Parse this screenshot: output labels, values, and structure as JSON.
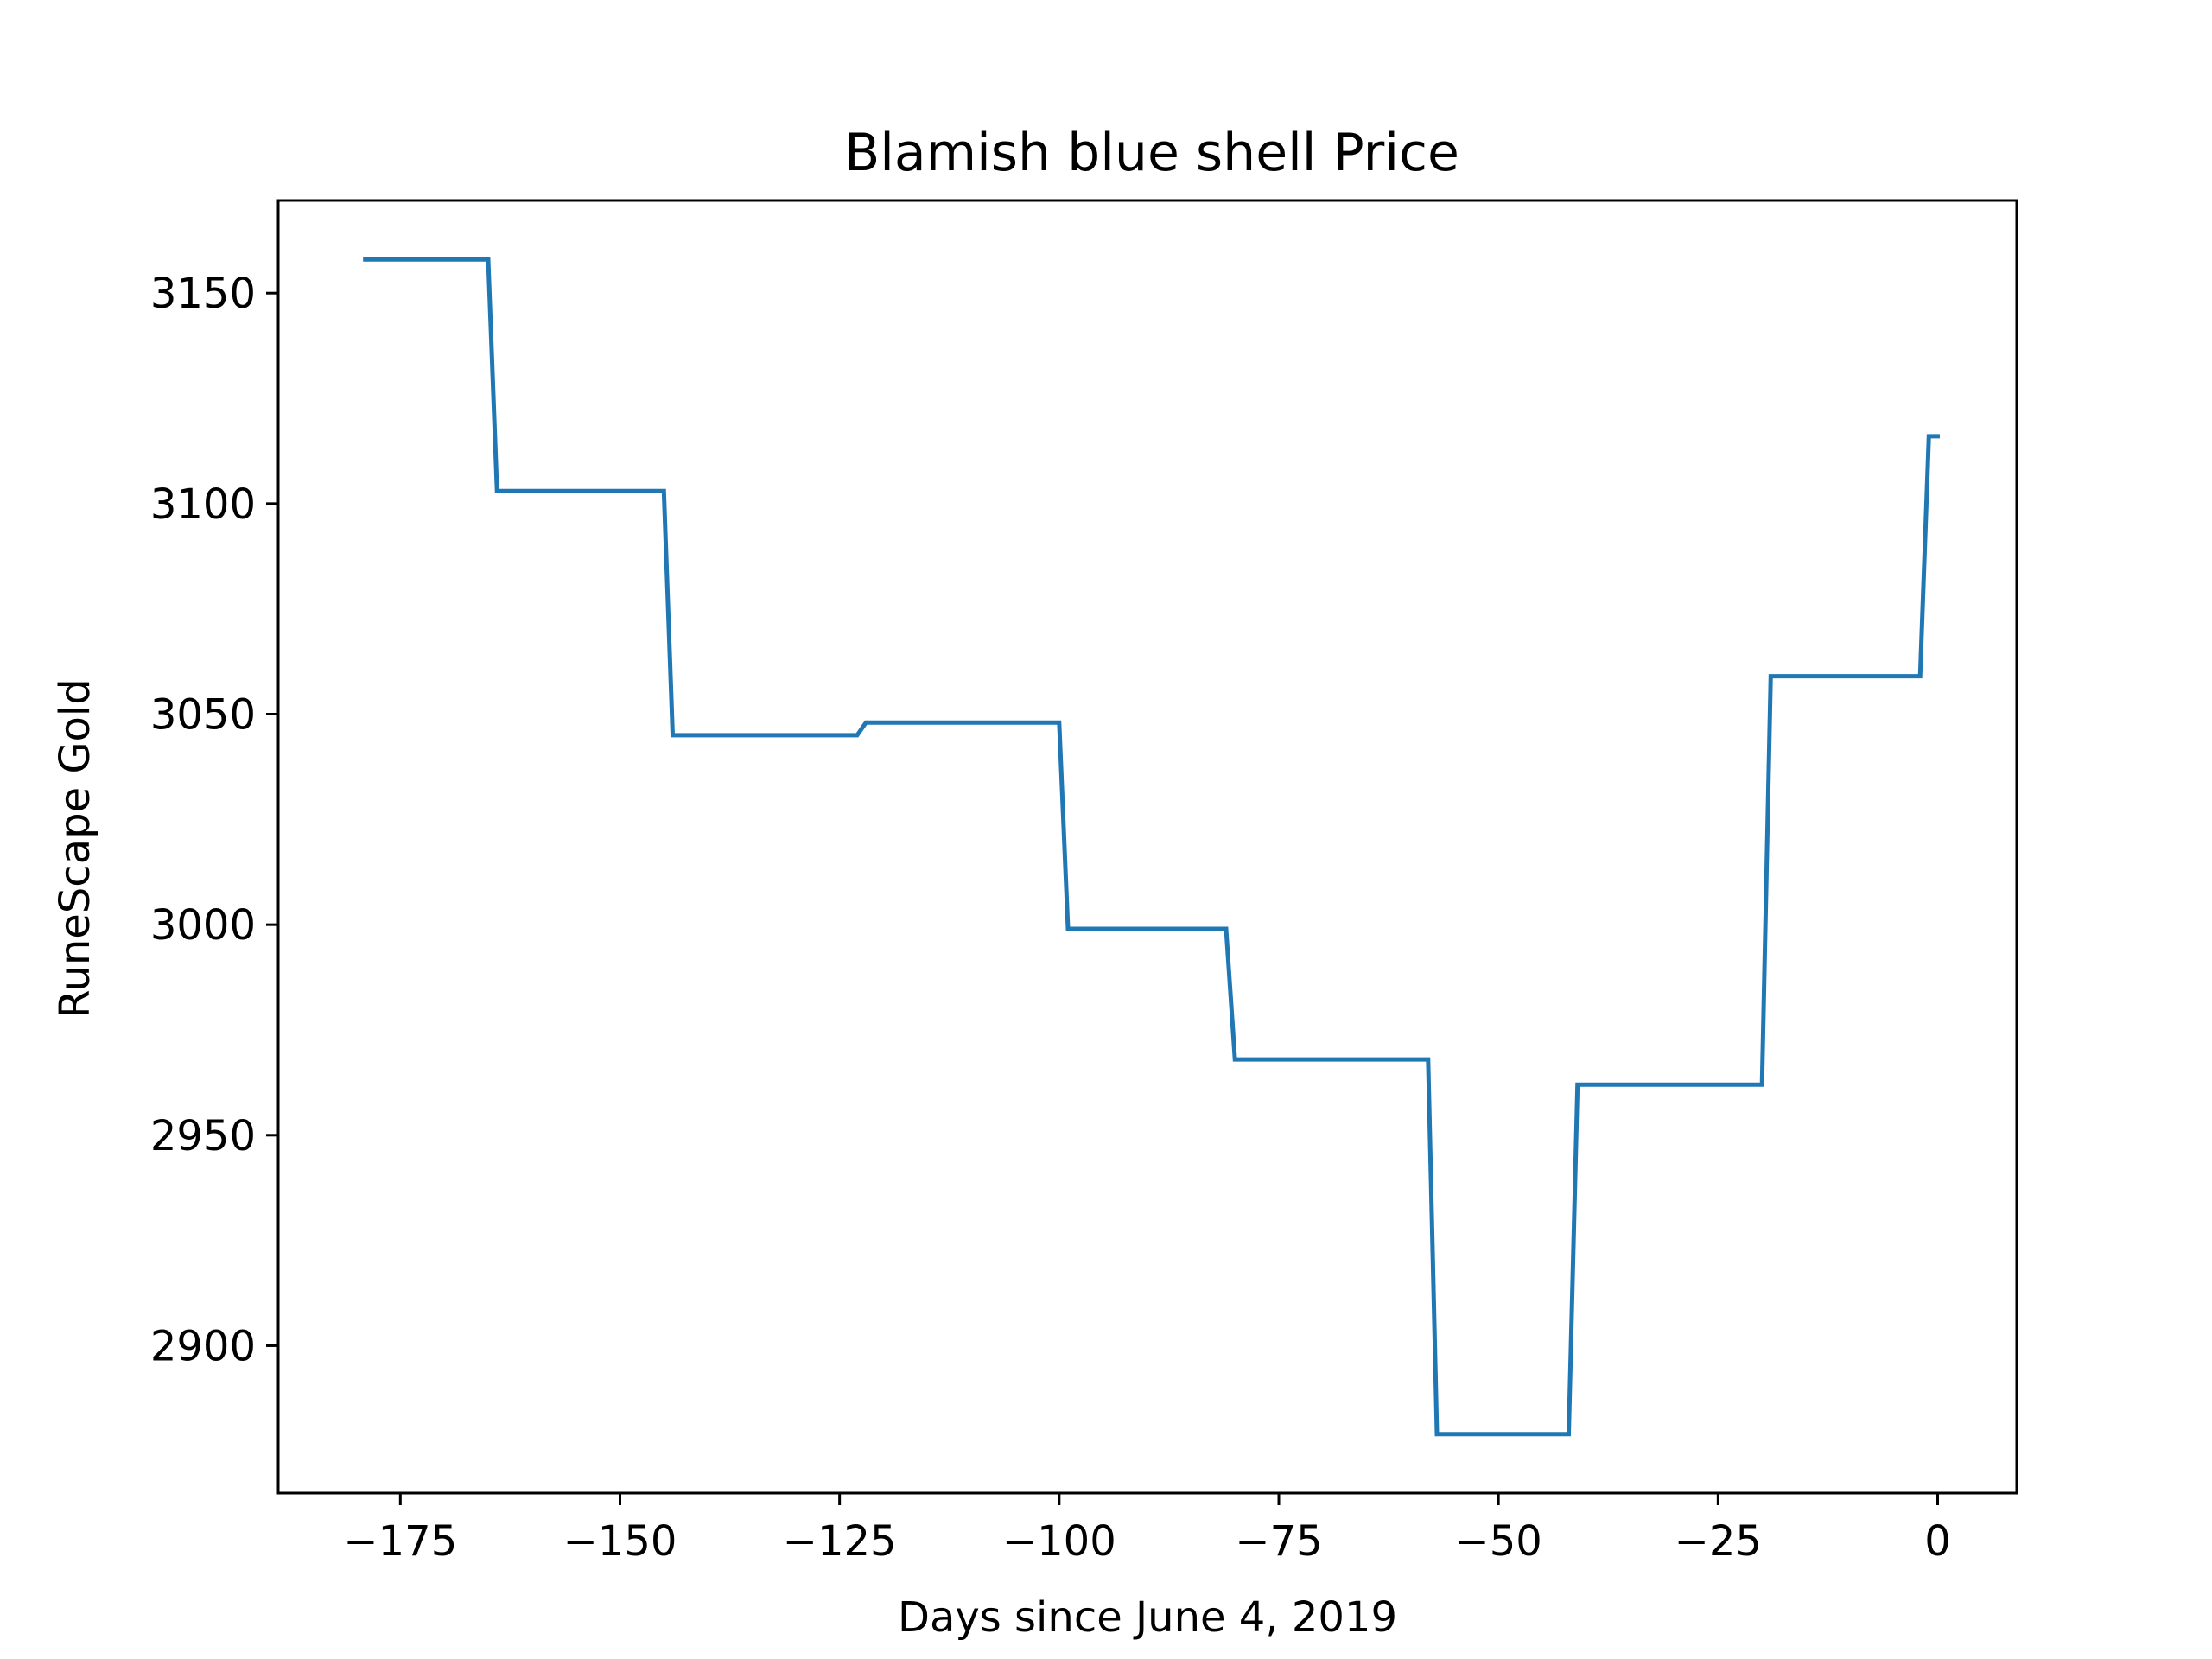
{
  "chart_data": {
    "type": "line",
    "title": "Blamish blue shell Price",
    "xlabel": "Days since June 4, 2019",
    "ylabel": "RuneScape Gold",
    "xlim": [
      -188.9,
      9
    ],
    "ylim": [
      2865,
      3172
    ],
    "xticks": [
      -175,
      -150,
      -125,
      -100,
      -75,
      -50,
      -25,
      0
    ],
    "xtick_labels": [
      "−175",
      "−150",
      "−125",
      "−100",
      "−75",
      "−50",
      "−25",
      "0"
    ],
    "yticks": [
      2900,
      2950,
      3000,
      3050,
      3100,
      3150
    ],
    "ytick_labels": [
      "2900",
      "2950",
      "3000",
      "3050",
      "3100",
      "3150"
    ],
    "grid": false,
    "color": "#1f77b4",
    "series": [
      {
        "x": [
          -179,
          -165,
          -164,
          -145,
          -144,
          -123,
          -122,
          -100,
          -99,
          -81,
          -80,
          -58,
          -57,
          -42,
          -41,
          -20,
          -19,
          -2,
          -1,
          0
        ],
        "values": [
          3158,
          3158,
          3103,
          3103,
          3045,
          3045,
          3048,
          3048,
          2999,
          2999,
          2968,
          2968,
          2879,
          2879,
          2962,
          2962,
          3059,
          3059,
          3116,
          3116
        ]
      }
    ]
  }
}
